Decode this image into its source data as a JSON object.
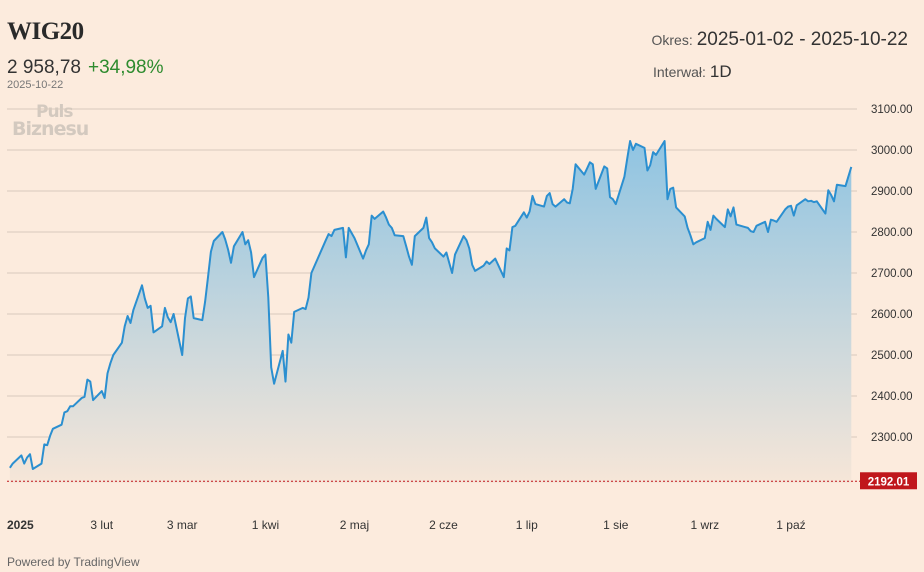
{
  "header": {
    "ticker": "WIG20",
    "price": "2 958,78",
    "change": "+34,98%",
    "date": "2025-10-22",
    "period_label": "Okres:",
    "period_value": "2025-01-02 - 2025-10-22",
    "interval_label": "Interwał:",
    "interval_value": "1D"
  },
  "logo": {
    "line1": "Puls",
    "line2": "Biznesu"
  },
  "footer": {
    "powered_by": "Powered by TradingView"
  },
  "colors": {
    "line": "#2b8fd0",
    "fill_top": "#8fc4e2",
    "fill_bottom": "#f6e6d8",
    "marker": "#c0171c",
    "background": "#fcebdd"
  },
  "chart_data": {
    "type": "area",
    "grid": "horizontal",
    "ylim": [
      2192.01,
      3124
    ],
    "y_ticks": [
      "3100.00",
      "3000.00",
      "2900.00",
      "2800.00",
      "2700.00",
      "2600.00",
      "2500.00",
      "2400.00",
      "2300.00"
    ],
    "y_tick_values": [
      3100,
      3000,
      2900,
      2800,
      2700,
      2600,
      2500,
      2400,
      2300
    ],
    "last_marker_label": "2192.01",
    "last_marker_value": 2192.01,
    "x_ticks": [
      {
        "label": "2025",
        "date": "2025-01-01",
        "bold": true
      },
      {
        "label": "3 lut",
        "date": "2025-02-03"
      },
      {
        "label": "3 mar",
        "date": "2025-03-03"
      },
      {
        "label": "1 kwi",
        "date": "2025-04-01"
      },
      {
        "label": "2 maj",
        "date": "2025-05-02"
      },
      {
        "label": "2 cze",
        "date": "2025-06-02"
      },
      {
        "label": "1 lip",
        "date": "2025-07-01"
      },
      {
        "label": "1 sie",
        "date": "2025-08-01"
      },
      {
        "label": "1 wrz",
        "date": "2025-09-01"
      },
      {
        "label": "1 paź",
        "date": "2025-10-01"
      }
    ],
    "series": [
      {
        "points": [
          [
            "2025-01-02",
            2225
          ],
          [
            "2025-01-03",
            2235
          ],
          [
            "2025-01-06",
            2255
          ],
          [
            "2025-01-07",
            2235
          ],
          [
            "2025-01-08",
            2250
          ],
          [
            "2025-01-09",
            2258
          ],
          [
            "2025-01-10",
            2222
          ],
          [
            "2025-01-13",
            2235
          ],
          [
            "2025-01-14",
            2282
          ],
          [
            "2025-01-15",
            2280
          ],
          [
            "2025-01-16",
            2303
          ],
          [
            "2025-01-17",
            2320
          ],
          [
            "2025-01-20",
            2330
          ],
          [
            "2025-01-21",
            2360
          ],
          [
            "2025-01-22",
            2363
          ],
          [
            "2025-01-23",
            2375
          ],
          [
            "2025-01-24",
            2375
          ],
          [
            "2025-01-27",
            2395
          ],
          [
            "2025-01-28",
            2398
          ],
          [
            "2025-01-29",
            2440
          ],
          [
            "2025-01-30",
            2435
          ],
          [
            "2025-01-31",
            2390
          ],
          [
            "2025-02-03",
            2412
          ],
          [
            "2025-02-04",
            2395
          ],
          [
            "2025-02-05",
            2455
          ],
          [
            "2025-02-06",
            2480
          ],
          [
            "2025-02-07",
            2500
          ],
          [
            "2025-02-10",
            2530
          ],
          [
            "2025-02-11",
            2570
          ],
          [
            "2025-02-12",
            2595
          ],
          [
            "2025-02-13",
            2578
          ],
          [
            "2025-02-14",
            2610
          ],
          [
            "2025-02-17",
            2670
          ],
          [
            "2025-02-18",
            2638
          ],
          [
            "2025-02-19",
            2615
          ],
          [
            "2025-02-20",
            2620
          ],
          [
            "2025-02-21",
            2555
          ],
          [
            "2025-02-24",
            2570
          ],
          [
            "2025-02-25",
            2615
          ],
          [
            "2025-02-26",
            2592
          ],
          [
            "2025-02-27",
            2580
          ],
          [
            "2025-02-28",
            2600
          ],
          [
            "2025-03-03",
            2500
          ],
          [
            "2025-03-04",
            2590
          ],
          [
            "2025-03-05",
            2638
          ],
          [
            "2025-03-06",
            2643
          ],
          [
            "2025-03-07",
            2590
          ],
          [
            "2025-03-10",
            2585
          ],
          [
            "2025-03-11",
            2630
          ],
          [
            "2025-03-12",
            2690
          ],
          [
            "2025-03-13",
            2752
          ],
          [
            "2025-03-14",
            2778
          ],
          [
            "2025-03-17",
            2800
          ],
          [
            "2025-03-18",
            2782
          ],
          [
            "2025-03-19",
            2757
          ],
          [
            "2025-03-20",
            2725
          ],
          [
            "2025-03-21",
            2765
          ],
          [
            "2025-03-24",
            2800
          ],
          [
            "2025-03-25",
            2770
          ],
          [
            "2025-03-26",
            2780
          ],
          [
            "2025-03-27",
            2750
          ],
          [
            "2025-03-28",
            2690
          ],
          [
            "2025-03-31",
            2737
          ],
          [
            "2025-04-01",
            2745
          ],
          [
            "2025-04-02",
            2640
          ],
          [
            "2025-04-03",
            2470
          ],
          [
            "2025-04-04",
            2430
          ],
          [
            "2025-04-07",
            2510
          ],
          [
            "2025-04-08",
            2435
          ],
          [
            "2025-04-09",
            2550
          ],
          [
            "2025-04-10",
            2530
          ],
          [
            "2025-04-11",
            2605
          ],
          [
            "2025-04-14",
            2615
          ],
          [
            "2025-04-15",
            2612
          ],
          [
            "2025-04-16",
            2640
          ],
          [
            "2025-04-17",
            2700
          ],
          [
            "2025-04-22",
            2780
          ],
          [
            "2025-04-23",
            2795
          ],
          [
            "2025-04-24",
            2790
          ],
          [
            "2025-04-25",
            2805
          ],
          [
            "2025-04-28",
            2810
          ],
          [
            "2025-04-29",
            2738
          ],
          [
            "2025-04-30",
            2810
          ],
          [
            "2025-05-02",
            2785
          ],
          [
            "2025-05-05",
            2735
          ],
          [
            "2025-05-06",
            2755
          ],
          [
            "2025-05-07",
            2770
          ],
          [
            "2025-05-08",
            2840
          ],
          [
            "2025-05-09",
            2832
          ],
          [
            "2025-05-12",
            2850
          ],
          [
            "2025-05-13",
            2835
          ],
          [
            "2025-05-14",
            2818
          ],
          [
            "2025-05-15",
            2810
          ],
          [
            "2025-05-16",
            2792
          ],
          [
            "2025-05-19",
            2790
          ],
          [
            "2025-05-20",
            2765
          ],
          [
            "2025-05-21",
            2740
          ],
          [
            "2025-05-22",
            2720
          ],
          [
            "2025-05-23",
            2790
          ],
          [
            "2025-05-26",
            2810
          ],
          [
            "2025-05-27",
            2835
          ],
          [
            "2025-05-28",
            2785
          ],
          [
            "2025-05-29",
            2775
          ],
          [
            "2025-05-30",
            2760
          ],
          [
            "2025-06-02",
            2740
          ],
          [
            "2025-06-03",
            2750
          ],
          [
            "2025-06-04",
            2725
          ],
          [
            "2025-06-05",
            2700
          ],
          [
            "2025-06-06",
            2745
          ],
          [
            "2025-06-09",
            2790
          ],
          [
            "2025-06-10",
            2780
          ],
          [
            "2025-06-11",
            2760
          ],
          [
            "2025-06-12",
            2720
          ],
          [
            "2025-06-13",
            2705
          ],
          [
            "2025-06-16",
            2718
          ],
          [
            "2025-06-17",
            2728
          ],
          [
            "2025-06-18",
            2722
          ],
          [
            "2025-06-20",
            2735
          ],
          [
            "2025-06-23",
            2690
          ],
          [
            "2025-06-24",
            2760
          ],
          [
            "2025-06-25",
            2755
          ],
          [
            "2025-06-26",
            2812
          ],
          [
            "2025-06-27",
            2815
          ],
          [
            "2025-06-30",
            2848
          ],
          [
            "2025-07-01",
            2835
          ],
          [
            "2025-07-02",
            2850
          ],
          [
            "2025-07-03",
            2888
          ],
          [
            "2025-07-04",
            2868
          ],
          [
            "2025-07-07",
            2862
          ],
          [
            "2025-07-08",
            2888
          ],
          [
            "2025-07-09",
            2895
          ],
          [
            "2025-07-10",
            2868
          ],
          [
            "2025-07-11",
            2862
          ],
          [
            "2025-07-14",
            2880
          ],
          [
            "2025-07-15",
            2872
          ],
          [
            "2025-07-16",
            2870
          ],
          [
            "2025-07-17",
            2905
          ],
          [
            "2025-07-18",
            2965
          ],
          [
            "2025-07-21",
            2940
          ],
          [
            "2025-07-22",
            2955
          ],
          [
            "2025-07-23",
            2970
          ],
          [
            "2025-07-24",
            2965
          ],
          [
            "2025-07-25",
            2905
          ],
          [
            "2025-07-28",
            2960
          ],
          [
            "2025-07-29",
            2955
          ],
          [
            "2025-07-30",
            2885
          ],
          [
            "2025-07-31",
            2880
          ],
          [
            "2025-08-01",
            2868
          ],
          [
            "2025-08-04",
            2935
          ],
          [
            "2025-08-05",
            2980
          ],
          [
            "2025-08-06",
            3022
          ],
          [
            "2025-08-07",
            3000
          ],
          [
            "2025-08-08",
            3015
          ],
          [
            "2025-08-11",
            3005
          ],
          [
            "2025-08-12",
            2950
          ],
          [
            "2025-08-13",
            2963
          ],
          [
            "2025-08-14",
            2995
          ],
          [
            "2025-08-15",
            2988
          ],
          [
            "2025-08-18",
            3022
          ],
          [
            "2025-08-19",
            2880
          ],
          [
            "2025-08-20",
            2905
          ],
          [
            "2025-08-21",
            2908
          ],
          [
            "2025-08-22",
            2860
          ],
          [
            "2025-08-25",
            2838
          ],
          [
            "2025-08-26",
            2810
          ],
          [
            "2025-08-27",
            2792
          ],
          [
            "2025-08-28",
            2770
          ],
          [
            "2025-08-29",
            2775
          ],
          [
            "2025-09-01",
            2785
          ],
          [
            "2025-09-02",
            2825
          ],
          [
            "2025-09-03",
            2805
          ],
          [
            "2025-09-04",
            2840
          ],
          [
            "2025-09-05",
            2832
          ],
          [
            "2025-09-08",
            2812
          ],
          [
            "2025-09-09",
            2855
          ],
          [
            "2025-09-10",
            2838
          ],
          [
            "2025-09-11",
            2860
          ],
          [
            "2025-09-12",
            2818
          ],
          [
            "2025-09-15",
            2812
          ],
          [
            "2025-09-16",
            2810
          ],
          [
            "2025-09-17",
            2802
          ],
          [
            "2025-09-18",
            2800
          ],
          [
            "2025-09-19",
            2815
          ],
          [
            "2025-09-22",
            2825
          ],
          [
            "2025-09-23",
            2800
          ],
          [
            "2025-09-24",
            2830
          ],
          [
            "2025-09-25",
            2828
          ],
          [
            "2025-09-26",
            2825
          ],
          [
            "2025-09-29",
            2855
          ],
          [
            "2025-09-30",
            2862
          ],
          [
            "2025-10-01",
            2864
          ],
          [
            "2025-10-02",
            2840
          ],
          [
            "2025-10-03",
            2865
          ],
          [
            "2025-10-06",
            2880
          ],
          [
            "2025-10-07",
            2875
          ],
          [
            "2025-10-08",
            2876
          ],
          [
            "2025-10-09",
            2873
          ],
          [
            "2025-10-10",
            2875
          ],
          [
            "2025-10-13",
            2845
          ],
          [
            "2025-10-14",
            2902
          ],
          [
            "2025-10-15",
            2890
          ],
          [
            "2025-10-16",
            2875
          ],
          [
            "2025-10-17",
            2915
          ],
          [
            "2025-10-20",
            2912
          ],
          [
            "2025-10-22",
            2958.78
          ]
        ]
      }
    ]
  }
}
